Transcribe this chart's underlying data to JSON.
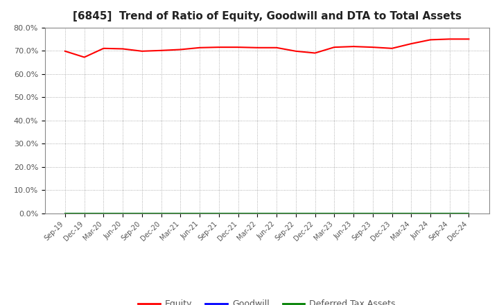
{
  "title": "[6845]  Trend of Ratio of Equity, Goodwill and DTA to Total Assets",
  "title_fontsize": 11,
  "x_labels": [
    "Sep-19",
    "Dec-19",
    "Mar-20",
    "Jun-20",
    "Sep-20",
    "Dec-20",
    "Mar-21",
    "Jun-21",
    "Sep-21",
    "Dec-21",
    "Mar-22",
    "Jun-22",
    "Sep-22",
    "Dec-22",
    "Mar-23",
    "Jun-23",
    "Sep-23",
    "Dec-23",
    "Mar-24",
    "Jun-24",
    "Sep-24",
    "Dec-24"
  ],
  "equity": [
    69.8,
    67.2,
    71.0,
    70.8,
    69.8,
    70.1,
    70.5,
    71.3,
    71.5,
    71.5,
    71.3,
    71.3,
    69.8,
    69.0,
    71.5,
    71.8,
    71.5,
    71.0,
    73.0,
    74.7,
    75.0,
    75.0
  ],
  "goodwill": [
    0.0,
    0.0,
    0.0,
    0.0,
    0.0,
    0.0,
    0.0,
    0.0,
    0.0,
    0.0,
    0.0,
    0.0,
    0.0,
    0.0,
    0.0,
    0.0,
    0.0,
    0.0,
    0.0,
    0.0,
    0.0,
    0.0
  ],
  "dta": [
    0.0,
    0.0,
    0.0,
    0.0,
    0.0,
    0.0,
    0.0,
    0.0,
    0.0,
    0.0,
    0.0,
    0.0,
    0.0,
    0.0,
    0.0,
    0.0,
    0.0,
    0.0,
    0.0,
    0.0,
    0.0,
    0.0
  ],
  "equity_color": "#FF0000",
  "goodwill_color": "#0000FF",
  "dta_color": "#008000",
  "ylim": [
    0,
    80
  ],
  "yticks": [
    0,
    10,
    20,
    30,
    40,
    50,
    60,
    70,
    80
  ],
  "ytick_labels": [
    "0.0%",
    "10.0%",
    "20.0%",
    "30.0%",
    "40.0%",
    "50.0%",
    "60.0%",
    "70.0%",
    "80.0%"
  ],
  "background_color": "#FFFFFF",
  "plot_bg_color": "#FFFFFF",
  "grid_color": "#999999",
  "legend_labels": [
    "Equity",
    "Goodwill",
    "Deferred Tax Assets"
  ],
  "legend_colors": [
    "#FF0000",
    "#0000FF",
    "#008000"
  ]
}
